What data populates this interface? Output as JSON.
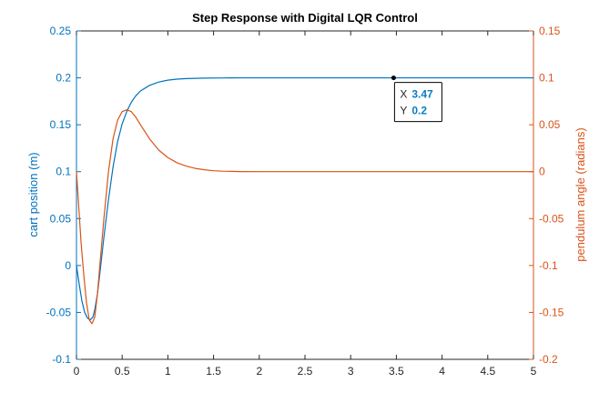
{
  "chart_data": {
    "type": "line",
    "title": "Step Response with Digital LQR Control",
    "xlabel": "",
    "xlim": [
      0,
      5
    ],
    "x_ticks": [
      "0",
      "0.5",
      "1",
      "1.5",
      "2",
      "2.5",
      "3",
      "3.5",
      "4",
      "4.5",
      "5"
    ],
    "left_axis": {
      "label": "cart position (m)",
      "ylim": [
        -0.1,
        0.25
      ],
      "ticks": [
        "-0.1",
        "-0.05",
        "0",
        "0.05",
        "0.1",
        "0.15",
        "0.2",
        "0.25"
      ],
      "color": "#0072BD"
    },
    "right_axis": {
      "label": "pendulum angle (radians)",
      "ylim": [
        -0.2,
        0.15
      ],
      "ticks": [
        "-0.2",
        "-0.15",
        "-0.1",
        "-0.05",
        "0",
        "0.05",
        "0.1",
        "0.15"
      ],
      "color": "#D95319"
    },
    "grid": false,
    "series": [
      {
        "axis": "left",
        "color": "#0072BD",
        "x": [
          0,
          0.03,
          0.06,
          0.09,
          0.12,
          0.15,
          0.18,
          0.2,
          0.23,
          0.26,
          0.3,
          0.35,
          0.4,
          0.45,
          0.5,
          0.55,
          0.6,
          0.65,
          0.7,
          0.8,
          0.9,
          1.0,
          1.1,
          1.2,
          1.4,
          1.6,
          1.8,
          2.0,
          2.5,
          3.0,
          3.5,
          4.0,
          4.5,
          5.0
        ],
        "y": [
          0,
          -0.02,
          -0.038,
          -0.05,
          -0.056,
          -0.058,
          -0.055,
          -0.047,
          -0.03,
          -0.005,
          0.03,
          0.07,
          0.105,
          0.132,
          0.151,
          0.164,
          0.174,
          0.181,
          0.186,
          0.192,
          0.1955,
          0.1975,
          0.1986,
          0.1992,
          0.1997,
          0.1999,
          0.2,
          0.2,
          0.2,
          0.2,
          0.2,
          0.2,
          0.2,
          0.2
        ]
      },
      {
        "axis": "right",
        "color": "#D95319",
        "x": [
          0,
          0.02,
          0.05,
          0.08,
          0.11,
          0.14,
          0.17,
          0.2,
          0.23,
          0.26,
          0.3,
          0.35,
          0.4,
          0.45,
          0.5,
          0.55,
          0.6,
          0.65,
          0.7,
          0.8,
          0.9,
          1.0,
          1.1,
          1.2,
          1.3,
          1.4,
          1.5,
          1.6,
          1.8,
          2.0,
          2.5,
          3.0,
          3.5,
          4.0,
          4.5,
          5.0
        ],
        "y": [
          0,
          -0.03,
          -0.075,
          -0.11,
          -0.14,
          -0.158,
          -0.162,
          -0.155,
          -0.13,
          -0.095,
          -0.05,
          0.0,
          0.035,
          0.055,
          0.064,
          0.066,
          0.064,
          0.058,
          0.05,
          0.035,
          0.023,
          0.015,
          0.0095,
          0.006,
          0.0035,
          0.002,
          0.001,
          0.0005,
          0.0001,
          0,
          0,
          0,
          0,
          0,
          0,
          0
        ]
      }
    ],
    "datatip": {
      "x_label": "X",
      "x_value": "3.47",
      "y_label": "Y",
      "y_value": "0.2",
      "x": 3.47,
      "y": 0.2
    }
  }
}
